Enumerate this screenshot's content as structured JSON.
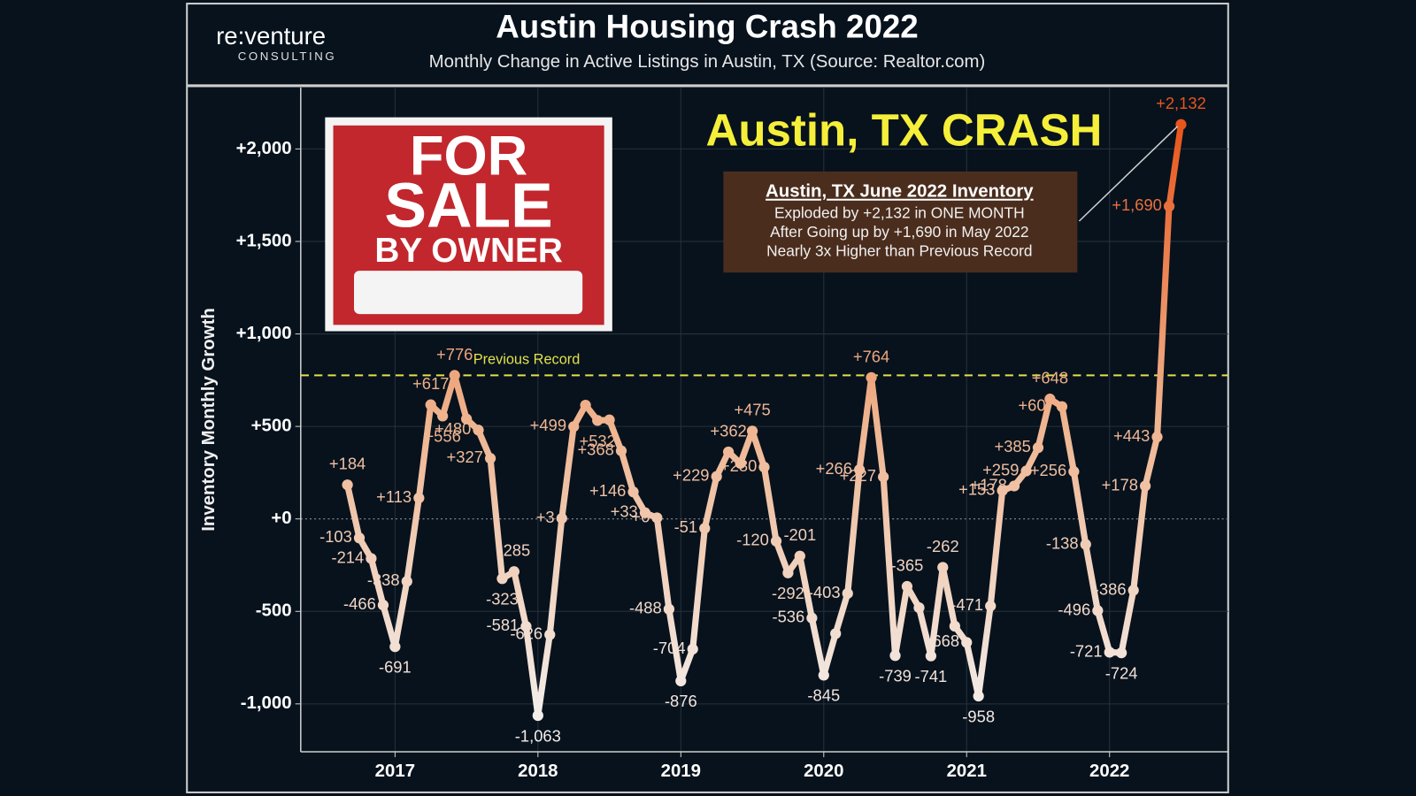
{
  "chart_data": {
    "type": "line",
    "logo": {
      "name": "re:venture",
      "tagline": "CONSULTING"
    },
    "title": "Austin Housing Crash 2022",
    "subtitle": "Monthly Change in Active Listings in Austin, TX (Source: Realtor.com)",
    "y_label": "Inventory Monthly Growth",
    "headline": "Austin, TX CRASH",
    "image_text": [
      "FOR",
      "SALE",
      "BY OWNER"
    ],
    "annotation_box": {
      "title": "Austin, TX June 2022 Inventory",
      "lines": [
        "Exploded by +2,132 in ONE MONTH",
        "After Going up by +1,690 in May 2022",
        "Nearly 3x Higher than Previous Record"
      ]
    },
    "reference_line": {
      "value": 776,
      "label": "Previous Record",
      "color": "#e3e04a"
    },
    "color_scale": [
      "#f3eeea",
      "#efb48f",
      "#e8561c"
    ],
    "grid": true,
    "xlim": [
      2016.34,
      2022.83
    ],
    "xticks": [
      2017,
      2018,
      2019,
      2020,
      2021,
      2022
    ],
    "ylim": [
      -1259,
      2332
    ],
    "yticks": [
      {
        "value": -1000,
        "label": "-1,000"
      },
      {
        "value": -500,
        "label": "-500"
      },
      {
        "value": 0,
        "label": "+0"
      },
      {
        "value": 500,
        "label": "+500"
      },
      {
        "value": 1000,
        "label": "+1,000"
      },
      {
        "value": 1500,
        "label": "+1,500"
      },
      {
        "value": 2000,
        "label": "+2,000"
      }
    ],
    "x": [
      2016.667,
      2016.75,
      2016.833,
      2016.917,
      2017.0,
      2017.083,
      2017.167,
      2017.25,
      2017.333,
      2017.417,
      2017.5,
      2017.583,
      2017.667,
      2017.75,
      2017.833,
      2017.917,
      2018.0,
      2018.083,
      2018.167,
      2018.25,
      2018.333,
      2018.417,
      2018.5,
      2018.583,
      2018.667,
      2018.75,
      2018.833,
      2018.917,
      2019.0,
      2019.083,
      2019.167,
      2019.25,
      2019.333,
      2019.417,
      2019.5,
      2019.583,
      2019.667,
      2019.75,
      2019.833,
      2019.917,
      2020.0,
      2020.083,
      2020.167,
      2020.25,
      2020.333,
      2020.417,
      2020.5,
      2020.583,
      2020.667,
      2020.75,
      2020.833,
      2020.917,
      2021.0,
      2021.083,
      2021.167,
      2021.25,
      2021.333,
      2021.417,
      2021.5,
      2021.583,
      2021.667,
      2021.75,
      2021.833,
      2021.917,
      2022.0,
      2022.083,
      2022.167,
      2022.25,
      2022.333,
      2022.417,
      2022.5
    ],
    "values": [
      184,
      -103,
      -214,
      -466,
      -691,
      -338,
      113,
      617,
      556,
      776,
      540,
      480,
      327,
      -323,
      -285,
      -581,
      -1063,
      -626,
      3,
      499,
      615,
      532,
      535,
      368,
      146,
      33,
      6,
      -488,
      -876,
      -704,
      -51,
      229,
      362,
      300,
      475,
      280,
      -120,
      -292,
      -201,
      -536,
      -845,
      -620,
      -403,
      266,
      764,
      227,
      -739,
      -365,
      -480,
      -741,
      -262,
      -580,
      -668,
      -958,
      -471,
      153,
      178,
      259,
      385,
      648,
      607,
      256,
      -138,
      -496,
      -721,
      -724,
      -386,
      178,
      443,
      1690,
      2132
    ],
    "value_labels": [
      "+184",
      "-103",
      "-214",
      "-466",
      "-691",
      "-338",
      "+113",
      "+617",
      "+556",
      "+776",
      null,
      "+480",
      "+327",
      "-323",
      "-285",
      "-581",
      "-1,063",
      "-626",
      "+3",
      "+499",
      null,
      "+532",
      null,
      "+368",
      "+146",
      "+33",
      "+6",
      "-488",
      "-876",
      "-704",
      "-51",
      "+229",
      "+362",
      null,
      "+475",
      "+280",
      "-120",
      "-292",
      "-201",
      "-536",
      "-845",
      null,
      "-403",
      "+266",
      "+764",
      "+227",
      "-739",
      "-365",
      null,
      "-741",
      "-262",
      null,
      "-668",
      "-958",
      "-471",
      "+153",
      "+178",
      "+259",
      "+385",
      "+648",
      "+607",
      "+256",
      "-138",
      "-496",
      "-721",
      "-724",
      "-386",
      "+178",
      "+443",
      "+1,690",
      "+2,132"
    ]
  }
}
